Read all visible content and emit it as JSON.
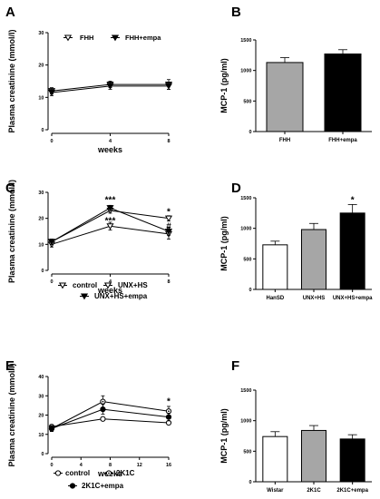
{
  "chart_data": [
    {
      "panel": "A",
      "type": "line",
      "xlabel": "weeks",
      "ylabel": "Plasma creatinine (mmol/l)",
      "xlim": [
        0,
        8
      ],
      "ylim": [
        0,
        30
      ],
      "xticks": [
        0,
        4,
        8
      ],
      "yticks": [
        0,
        10,
        20,
        30
      ],
      "legend": "top-left",
      "series": [
        {
          "name": "FHH",
          "marker": "triangle-down-open",
          "x": [
            0,
            4,
            8
          ],
          "y": [
            12,
            14,
            14
          ],
          "err": [
            1,
            1,
            1.5
          ]
        },
        {
          "name": "FHH+empa",
          "marker": "triangle-down-filled",
          "x": [
            0,
            4,
            8
          ],
          "y": [
            11.5,
            13.5,
            13.5
          ],
          "err": [
            1,
            1,
            1
          ]
        }
      ],
      "annotations": []
    },
    {
      "panel": "B",
      "type": "bar",
      "ylabel": "MCP-1 (pg/ml)",
      "ylim": [
        0,
        1500
      ],
      "yticks": [
        0,
        500,
        1000,
        1500
      ],
      "categories": [
        "FHH",
        "FHH+empa"
      ],
      "values": [
        1130,
        1270
      ],
      "errors": [
        80,
        70
      ],
      "colors": [
        "#a6a6a6",
        "#000000"
      ],
      "annotations": []
    },
    {
      "panel": "C",
      "type": "line",
      "xlabel": "weeks",
      "ylabel": "Plasma creatinine (mmol/l)",
      "xlim": [
        0,
        8
      ],
      "ylim": [
        0,
        30
      ],
      "xticks": [
        0,
        4,
        8
      ],
      "yticks": [
        0,
        10,
        20,
        30
      ],
      "legend": "bottom",
      "series": [
        {
          "name": "control",
          "marker": "triangle-down-open",
          "x": [
            0,
            4,
            8
          ],
          "y": [
            10,
            17,
            14
          ],
          "err": [
            1,
            1.5,
            2
          ]
        },
        {
          "name": "UNX+HS",
          "marker": "triangle-down-open",
          "x": [
            0,
            4,
            8
          ],
          "y": [
            11,
            23,
            20
          ],
          "err": [
            1,
            1,
            1
          ]
        },
        {
          "name": "UNX+HS+empa",
          "marker": "triangle-down-filled",
          "x": [
            0,
            4,
            8
          ],
          "y": [
            11,
            24,
            15
          ],
          "err": [
            1,
            1,
            1.5
          ]
        }
      ],
      "annotations": [
        {
          "text": "***",
          "x": 4,
          "y": 27
        },
        {
          "text": "***",
          "x": 4,
          "y": 19
        },
        {
          "text": "*",
          "x": 8,
          "y": 22.5
        },
        {
          "text": "#",
          "x": 8,
          "y": 17
        }
      ]
    },
    {
      "panel": "D",
      "type": "bar",
      "ylabel": "MCP-1 (pg/ml)",
      "ylim": [
        0,
        1500
      ],
      "yticks": [
        0,
        500,
        1000,
        1500
      ],
      "categories": [
        "HanSD",
        "UNX+HS",
        "UNX+HS+empa"
      ],
      "values": [
        730,
        980,
        1250
      ],
      "errors": [
        60,
        100,
        140
      ],
      "colors": [
        "#ffffff",
        "#a6a6a6",
        "#000000"
      ],
      "annotations": [
        {
          "text": "*",
          "category": "UNX+HS+empa"
        }
      ]
    },
    {
      "panel": "E",
      "type": "line",
      "xlabel": "weeks",
      "ylabel": "Plasma creatinine (mmol/l)",
      "xlim": [
        0,
        16
      ],
      "ylim": [
        0,
        40
      ],
      "xticks": [
        0,
        4,
        8,
        12,
        16
      ],
      "yticks": [
        0,
        10,
        20,
        30,
        40
      ],
      "legend": "bottom",
      "series": [
        {
          "name": "control",
          "marker": "circle-open",
          "x": [
            0,
            7,
            16
          ],
          "y": [
            14,
            18,
            16
          ],
          "err": [
            1,
            0.5,
            0.5
          ]
        },
        {
          "name": "2K1C",
          "marker": "circle-open-dot",
          "x": [
            0,
            7,
            16
          ],
          "y": [
            13,
            27,
            22
          ],
          "err": [
            1.5,
            3,
            2.5
          ]
        },
        {
          "name": "2K1C+empa",
          "marker": "circle-filled",
          "x": [
            0,
            7,
            16
          ],
          "y": [
            13,
            23,
            19
          ],
          "err": [
            1.5,
            2.5,
            2
          ]
        }
      ],
      "annotations": [
        {
          "text": "*",
          "x": 16,
          "y": 27
        }
      ]
    },
    {
      "panel": "F",
      "type": "bar",
      "ylabel": "MCP-1 (pg/ml)",
      "ylim": [
        0,
        1500
      ],
      "yticks": [
        0,
        500,
        1000,
        1500
      ],
      "categories": [
        "Wistar",
        "2K1C",
        "2K1C+empa"
      ],
      "values": [
        740,
        840,
        700
      ],
      "errors": [
        80,
        80,
        70
      ],
      "colors": [
        "#ffffff",
        "#a6a6a6",
        "#000000"
      ],
      "annotations": []
    }
  ]
}
